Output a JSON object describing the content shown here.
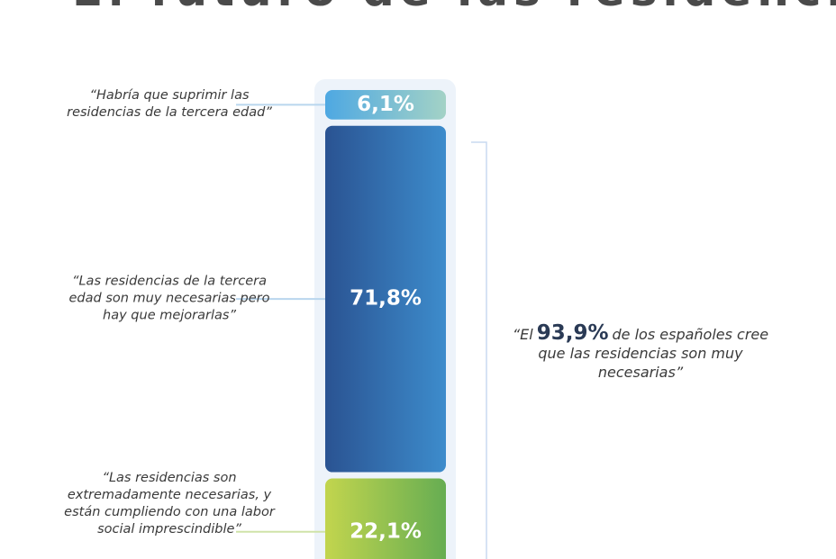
{
  "chart_data": {
    "type": "stacked-bar",
    "title": "El futuro de las residencias",
    "series": [
      {
        "name": "“Habría que suprimir las residencias de la tercera edad”",
        "values": [
          6.1
        ],
        "value_labels": [
          "6,1%"
        ],
        "color": "#4ea8e2",
        "color2": "#a3d2c6"
      },
      {
        "name": "“Las residencias de la tercera edad son muy necesarias pero hay que mejorarlas”",
        "values": [
          71.8
        ],
        "value_labels": [
          "71,8%"
        ],
        "color": "#2a5392",
        "color2": "#3d8ccc"
      },
      {
        "name": "“Las residencias son extremadamente necesarias, y están cumpliendo con una labor social imprescindible”",
        "values": [
          22.1
        ],
        "value_labels": [
          "22,1%"
        ],
        "color": "#c2d54e",
        "color2": "#66ad52"
      }
    ],
    "annotation": {
      "prefix": "“El",
      "highlight": "93,9%",
      "suffix": "de los españoles cree que las residencias son muy necesarias”"
    }
  }
}
